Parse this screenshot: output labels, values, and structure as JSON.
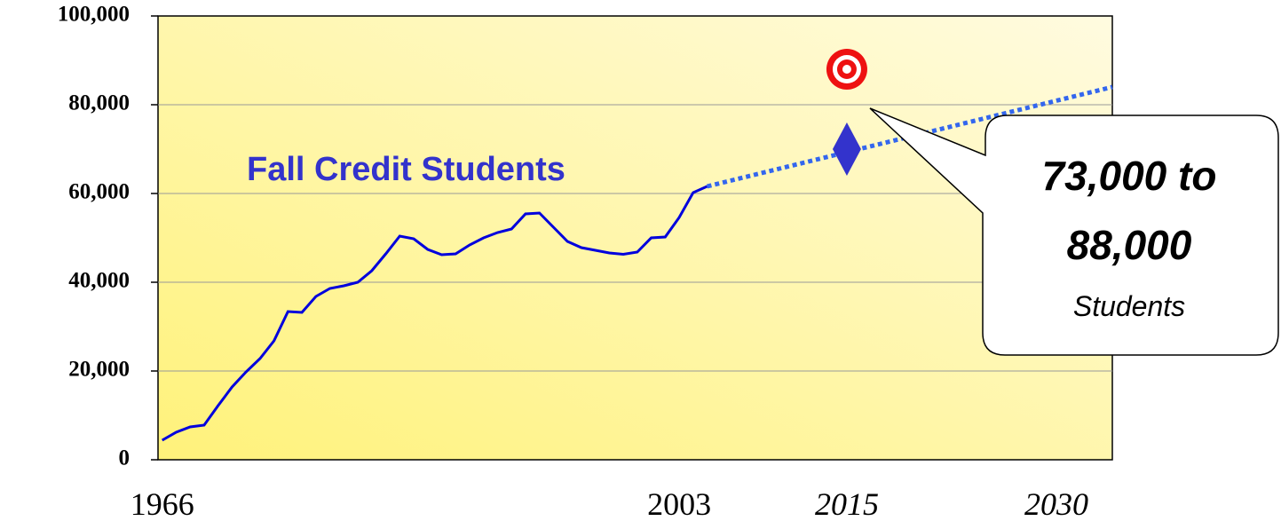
{
  "chart_data": {
    "type": "line",
    "series": [
      {
        "name": "Fall Credit Students",
        "color": "#0000dd",
        "x": [
          1966,
          1967,
          1968,
          1969,
          1970,
          1971,
          1972,
          1973,
          1974,
          1975,
          1976,
          1977,
          1978,
          1979,
          1980,
          1981,
          1982,
          1983,
          1984,
          1985,
          1986,
          1987,
          1988,
          1989,
          1990,
          1991,
          1992,
          1993,
          1994,
          1995,
          1996,
          1997,
          1998,
          1999,
          2000,
          2001,
          2002,
          2003,
          2004,
          2005
        ],
        "values": [
          4400,
          6200,
          7400,
          7800,
          12200,
          16400,
          19800,
          22800,
          26800,
          33400,
          33200,
          36800,
          38600,
          39200,
          40000,
          42600,
          46400,
          50400,
          49800,
          47400,
          46200,
          46400,
          48400,
          50000,
          51200,
          52000,
          55400,
          55600,
          52400,
          49200,
          47800,
          47200,
          46600,
          46300,
          46800,
          50000,
          50200,
          54600,
          60200,
          61600
        ]
      }
    ],
    "projection": {
      "color": "#3366ee",
      "x": [
        2005,
        2034
      ],
      "values": [
        61600,
        84000
      ]
    },
    "estimate": {
      "color": "#3333cc",
      "x": 2015,
      "value": 70000
    },
    "target": {
      "color": "#ee1111",
      "x": 2015,
      "value": 88000
    },
    "annotation": [
      "73,000 to",
      "88,000",
      "Students"
    ],
    "xlim": [
      1965.7,
      2034
    ],
    "xticks": [
      1966,
      2003,
      2015,
      2030
    ],
    "ylim": [
      0,
      100000
    ],
    "yticks": [
      0,
      {
        "value": 20000,
        "label": "20,000"
      },
      {
        "value": 40000,
        "label": "40,000"
      },
      {
        "value": 60000,
        "label": "60,000"
      },
      {
        "value": 80000,
        "label": "80,000"
      },
      {
        "value": 100000,
        "label": "100,000"
      }
    ],
    "grid": true
  }
}
